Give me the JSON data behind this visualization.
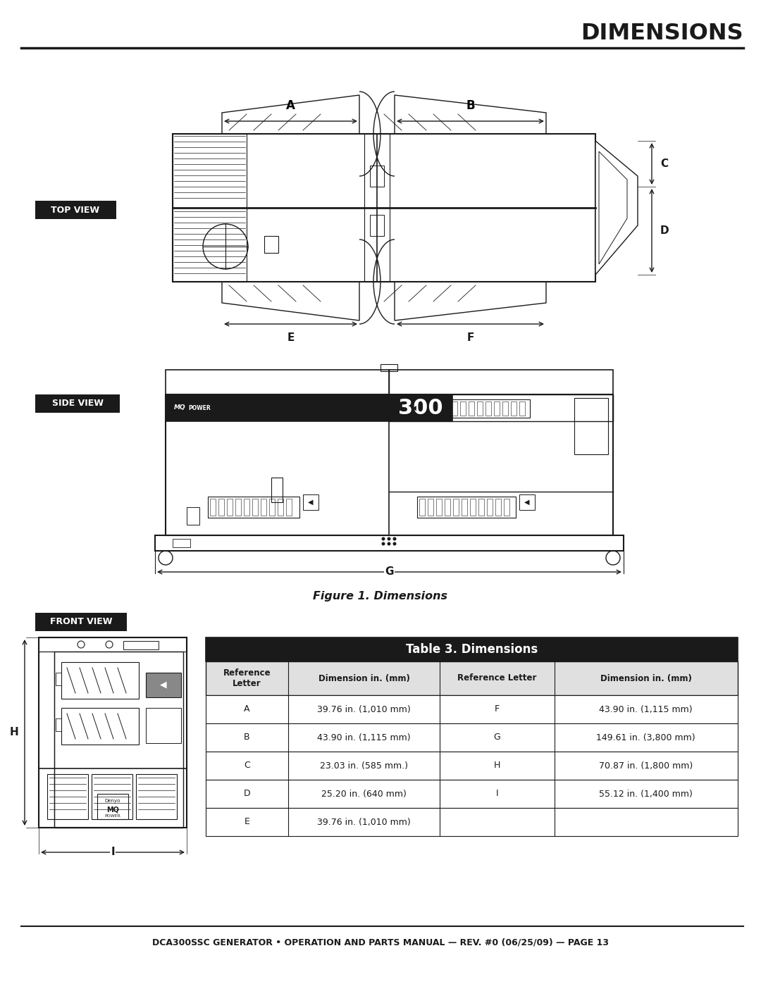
{
  "title": "DIMENSIONS",
  "footer": "DCA300SSC GENERATOR • OPERATION AND PARTS MANUAL — REV. #0 (06/25/09) — PAGE 13",
  "figure_caption": "Figure 1. Dimensions",
  "top_view_label": "TOP VIEW",
  "side_view_label": "SIDE VIEW",
  "front_view_label": "FRONT VIEW",
  "table_title": "Table 3. Dimensions",
  "table_headers": [
    "Reference\nLetter",
    "Dimension in. (mm)",
    "Reference Letter",
    "Dimension in. (mm)"
  ],
  "table_data": [
    [
      "A",
      "39.76 in. (1,010 mm)",
      "F",
      "43.90 in. (1,115 mm)"
    ],
    [
      "B",
      "43.90 in. (1,115 mm)",
      "G",
      "149.61 in. (3,800 mm)"
    ],
    [
      "C",
      "23.03 in. (585 mm.)",
      "H",
      "70.87 in. (1,800 mm)"
    ],
    [
      "D",
      "25.20 in. (640 mm)",
      "I",
      "55.12 in. (1,400 mm)"
    ],
    [
      "E",
      "39.76 in. (1,010 mm)",
      "",
      ""
    ]
  ],
  "bg_color": "#ffffff",
  "text_color": "#1a1a1a",
  "table_header_bg": "#1a1a1a",
  "table_header_fg": "#ffffff",
  "label_box_bg": "#1a1a1a",
  "label_box_fg": "#ffffff",
  "divider_color": "#1a1a1a"
}
